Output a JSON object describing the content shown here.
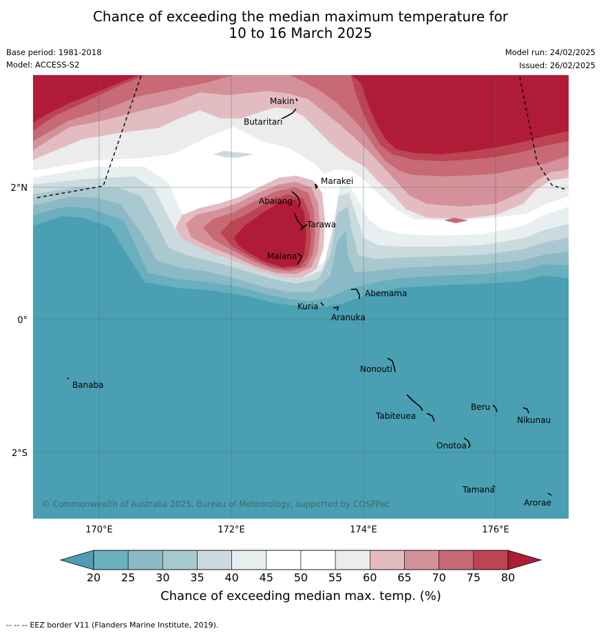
{
  "header": {
    "title_line1": "Chance of exceeding the median maximum temperature for",
    "title_line2": "10 to 16 March 2025",
    "base_period": "Base period: 1981-2018",
    "model": "Model: ACCESS-S2",
    "model_run": "Model run: 24/02/2025",
    "issued": "Issued: 26/02/2025"
  },
  "map": {
    "lon_labels": [
      "170°E",
      "172°E",
      "174°E",
      "176°E"
    ],
    "lat_labels": [
      "2°N",
      "0°",
      "2°S"
    ],
    "islands": [
      "Makin",
      "Butaritari",
      "Marakei",
      "Abaiang",
      "Tarawa",
      "Maiana",
      "Abemama",
      "Kuria",
      "Aranuka",
      "Banaba",
      "Nonouti",
      "Beru",
      "Nikunau",
      "Tabiteuea",
      "Onotoa",
      "Tamana",
      "Arorae"
    ],
    "copyright": "© Commonwealth of Australia 2025, Bureau of Meteorology, supported by COSPPac"
  },
  "colorbar": {
    "ticks": [
      "20",
      "25",
      "30",
      "35",
      "40",
      "45",
      "50",
      "55",
      "60",
      "65",
      "70",
      "75",
      "80"
    ],
    "label": "Chance of exceeding median max. temp. (%)",
    "colors": {
      "below_20": "#4aa0b2",
      "20-25": "#6aafbd",
      "25-30": "#8bbac6",
      "30-35": "#aac8cf",
      "35-40": "#cbdade",
      "40-45": "#e8eff1",
      "45-50": "#ffffff",
      "50-55": "#ffffff",
      "55-60": "#ececec",
      "60-65": "#e3bcc2",
      "65-70": "#d4919a",
      "70-75": "#c76a76",
      "75-80": "#bd4453",
      "above_80": "#b01c38"
    }
  },
  "footer": {
    "legend_dash": "--  --  --",
    "legend_text": "EEZ border V11 (Flanders Marine Institute, 2019)."
  }
}
